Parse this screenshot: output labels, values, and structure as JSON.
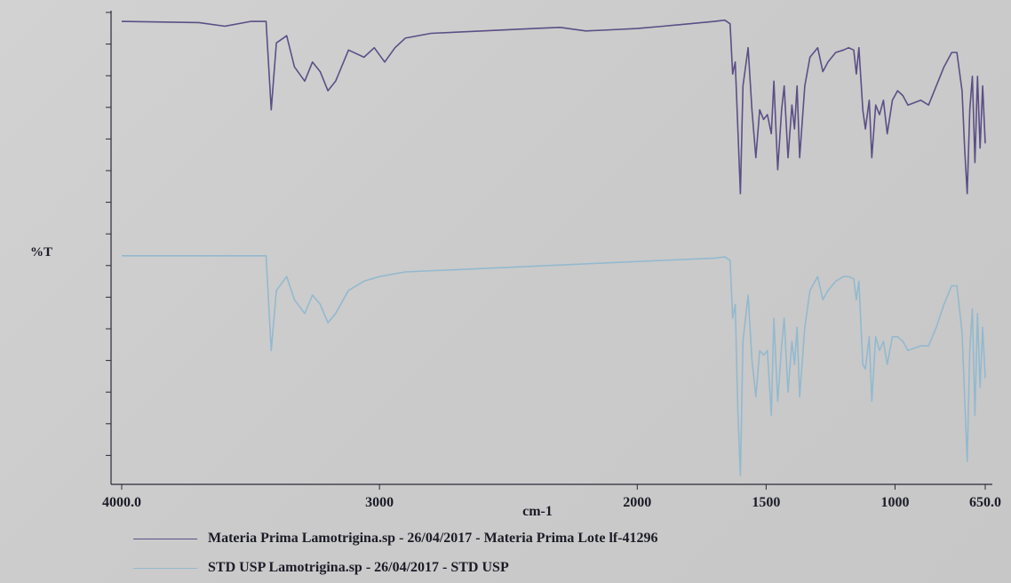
{
  "chart_data": {
    "type": "line",
    "title": "",
    "xlabel": "cm-1",
    "ylabel": "%T",
    "x_reversed": true,
    "xlim": [
      4000,
      650
    ],
    "x_ticks": [
      4000,
      3000,
      2000,
      1500,
      1000,
      650
    ],
    "x_tick_labels": [
      "4000.0",
      "3000",
      "2000",
      "1500",
      "1000",
      "650.0"
    ],
    "grid": false,
    "legend_position": "bottom",
    "series": [
      {
        "name": "Materia Prima Lamotrigina.sp - 26/04/2017 - Materia Prima Lote lf-41296",
        "color": "#5b4f86",
        "points": [
          [
            4000,
            97
          ],
          [
            3700,
            96.5
          ],
          [
            3600,
            95
          ],
          [
            3500,
            97
          ],
          [
            3440,
            97
          ],
          [
            3420,
            60
          ],
          [
            3400,
            88
          ],
          [
            3360,
            91
          ],
          [
            3330,
            78
          ],
          [
            3290,
            72
          ],
          [
            3260,
            80
          ],
          [
            3230,
            76
          ],
          [
            3200,
            68
          ],
          [
            3170,
            72
          ],
          [
            3120,
            85
          ],
          [
            3060,
            82
          ],
          [
            3020,
            86
          ],
          [
            2980,
            80
          ],
          [
            2940,
            86
          ],
          [
            2900,
            90
          ],
          [
            2800,
            92
          ],
          [
            2600,
            93
          ],
          [
            2400,
            94
          ],
          [
            2300,
            94.5
          ],
          [
            2200,
            93
          ],
          [
            2100,
            93.5
          ],
          [
            2000,
            94
          ],
          [
            1900,
            95
          ],
          [
            1800,
            96
          ],
          [
            1700,
            97
          ],
          [
            1660,
            97.5
          ],
          [
            1640,
            96
          ],
          [
            1630,
            75
          ],
          [
            1620,
            80
          ],
          [
            1600,
            25
          ],
          [
            1590,
            70
          ],
          [
            1570,
            86
          ],
          [
            1555,
            60
          ],
          [
            1540,
            40
          ],
          [
            1525,
            60
          ],
          [
            1510,
            56
          ],
          [
            1495,
            58
          ],
          [
            1480,
            50
          ],
          [
            1470,
            72
          ],
          [
            1455,
            35
          ],
          [
            1440,
            60
          ],
          [
            1430,
            70
          ],
          [
            1415,
            40
          ],
          [
            1400,
            62
          ],
          [
            1390,
            52
          ],
          [
            1380,
            70
          ],
          [
            1370,
            40
          ],
          [
            1350,
            70
          ],
          [
            1330,
            82
          ],
          [
            1300,
            86
          ],
          [
            1280,
            76
          ],
          [
            1260,
            80
          ],
          [
            1230,
            84
          ],
          [
            1200,
            85
          ],
          [
            1180,
            86
          ],
          [
            1160,
            85
          ],
          [
            1150,
            75
          ],
          [
            1140,
            86
          ],
          [
            1125,
            60
          ],
          [
            1115,
            52
          ],
          [
            1100,
            64
          ],
          [
            1090,
            40
          ],
          [
            1075,
            62
          ],
          [
            1060,
            58
          ],
          [
            1045,
            64
          ],
          [
            1030,
            50
          ],
          [
            1010,
            64
          ],
          [
            990,
            68
          ],
          [
            970,
            66
          ],
          [
            950,
            62
          ],
          [
            900,
            64
          ],
          [
            870,
            62
          ],
          [
            840,
            70
          ],
          [
            810,
            78
          ],
          [
            780,
            84
          ],
          [
            760,
            84
          ],
          [
            740,
            68
          ],
          [
            730,
            44
          ],
          [
            720,
            25
          ],
          [
            710,
            60
          ],
          [
            700,
            74
          ],
          [
            690,
            38
          ],
          [
            680,
            74
          ],
          [
            670,
            44
          ],
          [
            660,
            70
          ],
          [
            650,
            46
          ]
        ]
      },
      {
        "name": "STD USP Lamotrigina.sp - 26/04/2017 - STD USP",
        "color": "#93b9cf",
        "points": [
          [
            4000,
            97
          ],
          [
            3700,
            97
          ],
          [
            3500,
            97
          ],
          [
            3440,
            97
          ],
          [
            3420,
            56
          ],
          [
            3400,
            82
          ],
          [
            3360,
            88
          ],
          [
            3330,
            78
          ],
          [
            3290,
            72
          ],
          [
            3260,
            80
          ],
          [
            3230,
            76
          ],
          [
            3200,
            68
          ],
          [
            3170,
            72
          ],
          [
            3120,
            82
          ],
          [
            3060,
            86
          ],
          [
            3000,
            88
          ],
          [
            2900,
            90
          ],
          [
            2700,
            91
          ],
          [
            2500,
            92
          ],
          [
            2300,
            93
          ],
          [
            2100,
            94
          ],
          [
            1900,
            95
          ],
          [
            1700,
            96
          ],
          [
            1660,
            96.5
          ],
          [
            1640,
            95
          ],
          [
            1630,
            70
          ],
          [
            1620,
            76
          ],
          [
            1610,
            30
          ],
          [
            1600,
            2
          ],
          [
            1590,
            60
          ],
          [
            1570,
            80
          ],
          [
            1555,
            52
          ],
          [
            1540,
            36
          ],
          [
            1525,
            56
          ],
          [
            1510,
            54
          ],
          [
            1495,
            56
          ],
          [
            1480,
            28
          ],
          [
            1470,
            70
          ],
          [
            1455,
            34
          ],
          [
            1440,
            58
          ],
          [
            1430,
            70
          ],
          [
            1415,
            38
          ],
          [
            1400,
            60
          ],
          [
            1390,
            50
          ],
          [
            1380,
            66
          ],
          [
            1370,
            36
          ],
          [
            1350,
            66
          ],
          [
            1330,
            82
          ],
          [
            1300,
            88
          ],
          [
            1280,
            78
          ],
          [
            1260,
            82
          ],
          [
            1230,
            86
          ],
          [
            1200,
            88
          ],
          [
            1180,
            88
          ],
          [
            1160,
            87
          ],
          [
            1150,
            78
          ],
          [
            1140,
            86
          ],
          [
            1125,
            50
          ],
          [
            1115,
            48
          ],
          [
            1100,
            62
          ],
          [
            1090,
            34
          ],
          [
            1075,
            62
          ],
          [
            1060,
            56
          ],
          [
            1045,
            60
          ],
          [
            1030,
            50
          ],
          [
            1010,
            62
          ],
          [
            990,
            62
          ],
          [
            970,
            60
          ],
          [
            950,
            56
          ],
          [
            900,
            58
          ],
          [
            870,
            58
          ],
          [
            840,
            66
          ],
          [
            810,
            76
          ],
          [
            780,
            84
          ],
          [
            760,
            84
          ],
          [
            740,
            64
          ],
          [
            730,
            36
          ],
          [
            720,
            8
          ],
          [
            710,
            56
          ],
          [
            700,
            74
          ],
          [
            690,
            28
          ],
          [
            680,
            72
          ],
          [
            670,
            40
          ],
          [
            660,
            66
          ],
          [
            650,
            44
          ]
        ]
      }
    ]
  }
}
